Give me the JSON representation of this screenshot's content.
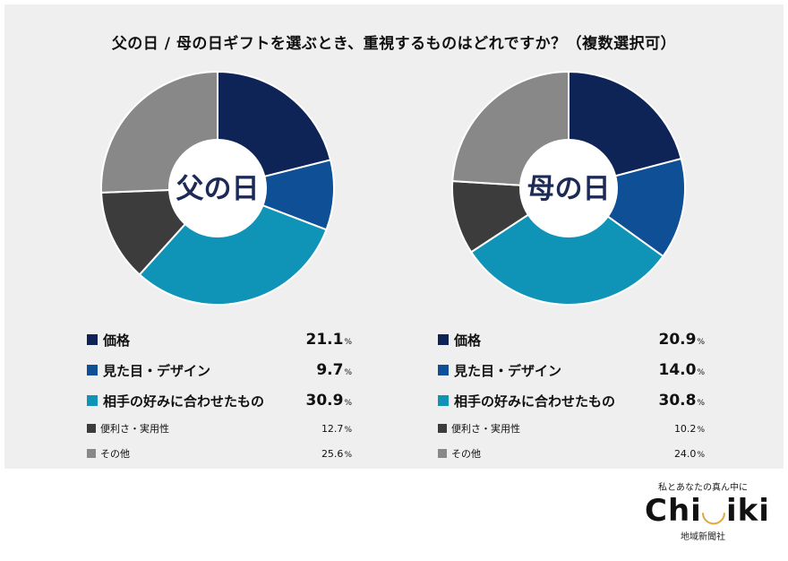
{
  "title": "父の日 / 母の日ギフトを選ぶとき、重視するものはどれですか？（複数選択可）",
  "chart_data": [
    {
      "type": "pie",
      "title": "父の日",
      "percent_unit": "%",
      "slices": [
        {
          "label": "価格",
          "value": 21.1,
          "value_text": "21.1",
          "color": "#0f2456",
          "emphasis": true
        },
        {
          "label": "見た目・デザイン",
          "value": 9.7,
          "value_text": "9.7",
          "color": "#0f4f96",
          "emphasis": true
        },
        {
          "label": "相手の好みに合わせたもの",
          "value": 30.9,
          "value_text": "30.9",
          "color": "#0f94b8",
          "emphasis": true
        },
        {
          "label": "便利さ・実用性",
          "value": 12.7,
          "value_text": "12.7",
          "color": "#3c3c3c",
          "emphasis": false
        },
        {
          "label": "その他",
          "value": 25.6,
          "value_text": "25.6",
          "color": "#888888",
          "emphasis": false
        }
      ]
    },
    {
      "type": "pie",
      "title": "母の日",
      "percent_unit": "%",
      "slices": [
        {
          "label": "価格",
          "value": 20.9,
          "value_text": "20.9",
          "color": "#0f2456",
          "emphasis": true
        },
        {
          "label": "見た目・デザイン",
          "value": 14.0,
          "value_text": "14.0",
          "color": "#0f4f96",
          "emphasis": true
        },
        {
          "label": "相手の好みに合わせたもの",
          "value": 30.8,
          "value_text": "30.8",
          "color": "#0f94b8",
          "emphasis": true
        },
        {
          "label": "便利さ・実用性",
          "value": 10.2,
          "value_text": "10.2",
          "color": "#3c3c3c",
          "emphasis": false
        },
        {
          "label": "その他",
          "value": 24.0,
          "value_text": "24.0",
          "color": "#888888",
          "emphasis": false
        }
      ]
    }
  ],
  "logo": {
    "tagline": "私とあなたの真ん中に",
    "brand_left": "Chi",
    "brand_mark": "◡",
    "brand_right": "iki",
    "company": "地域新聞社"
  }
}
